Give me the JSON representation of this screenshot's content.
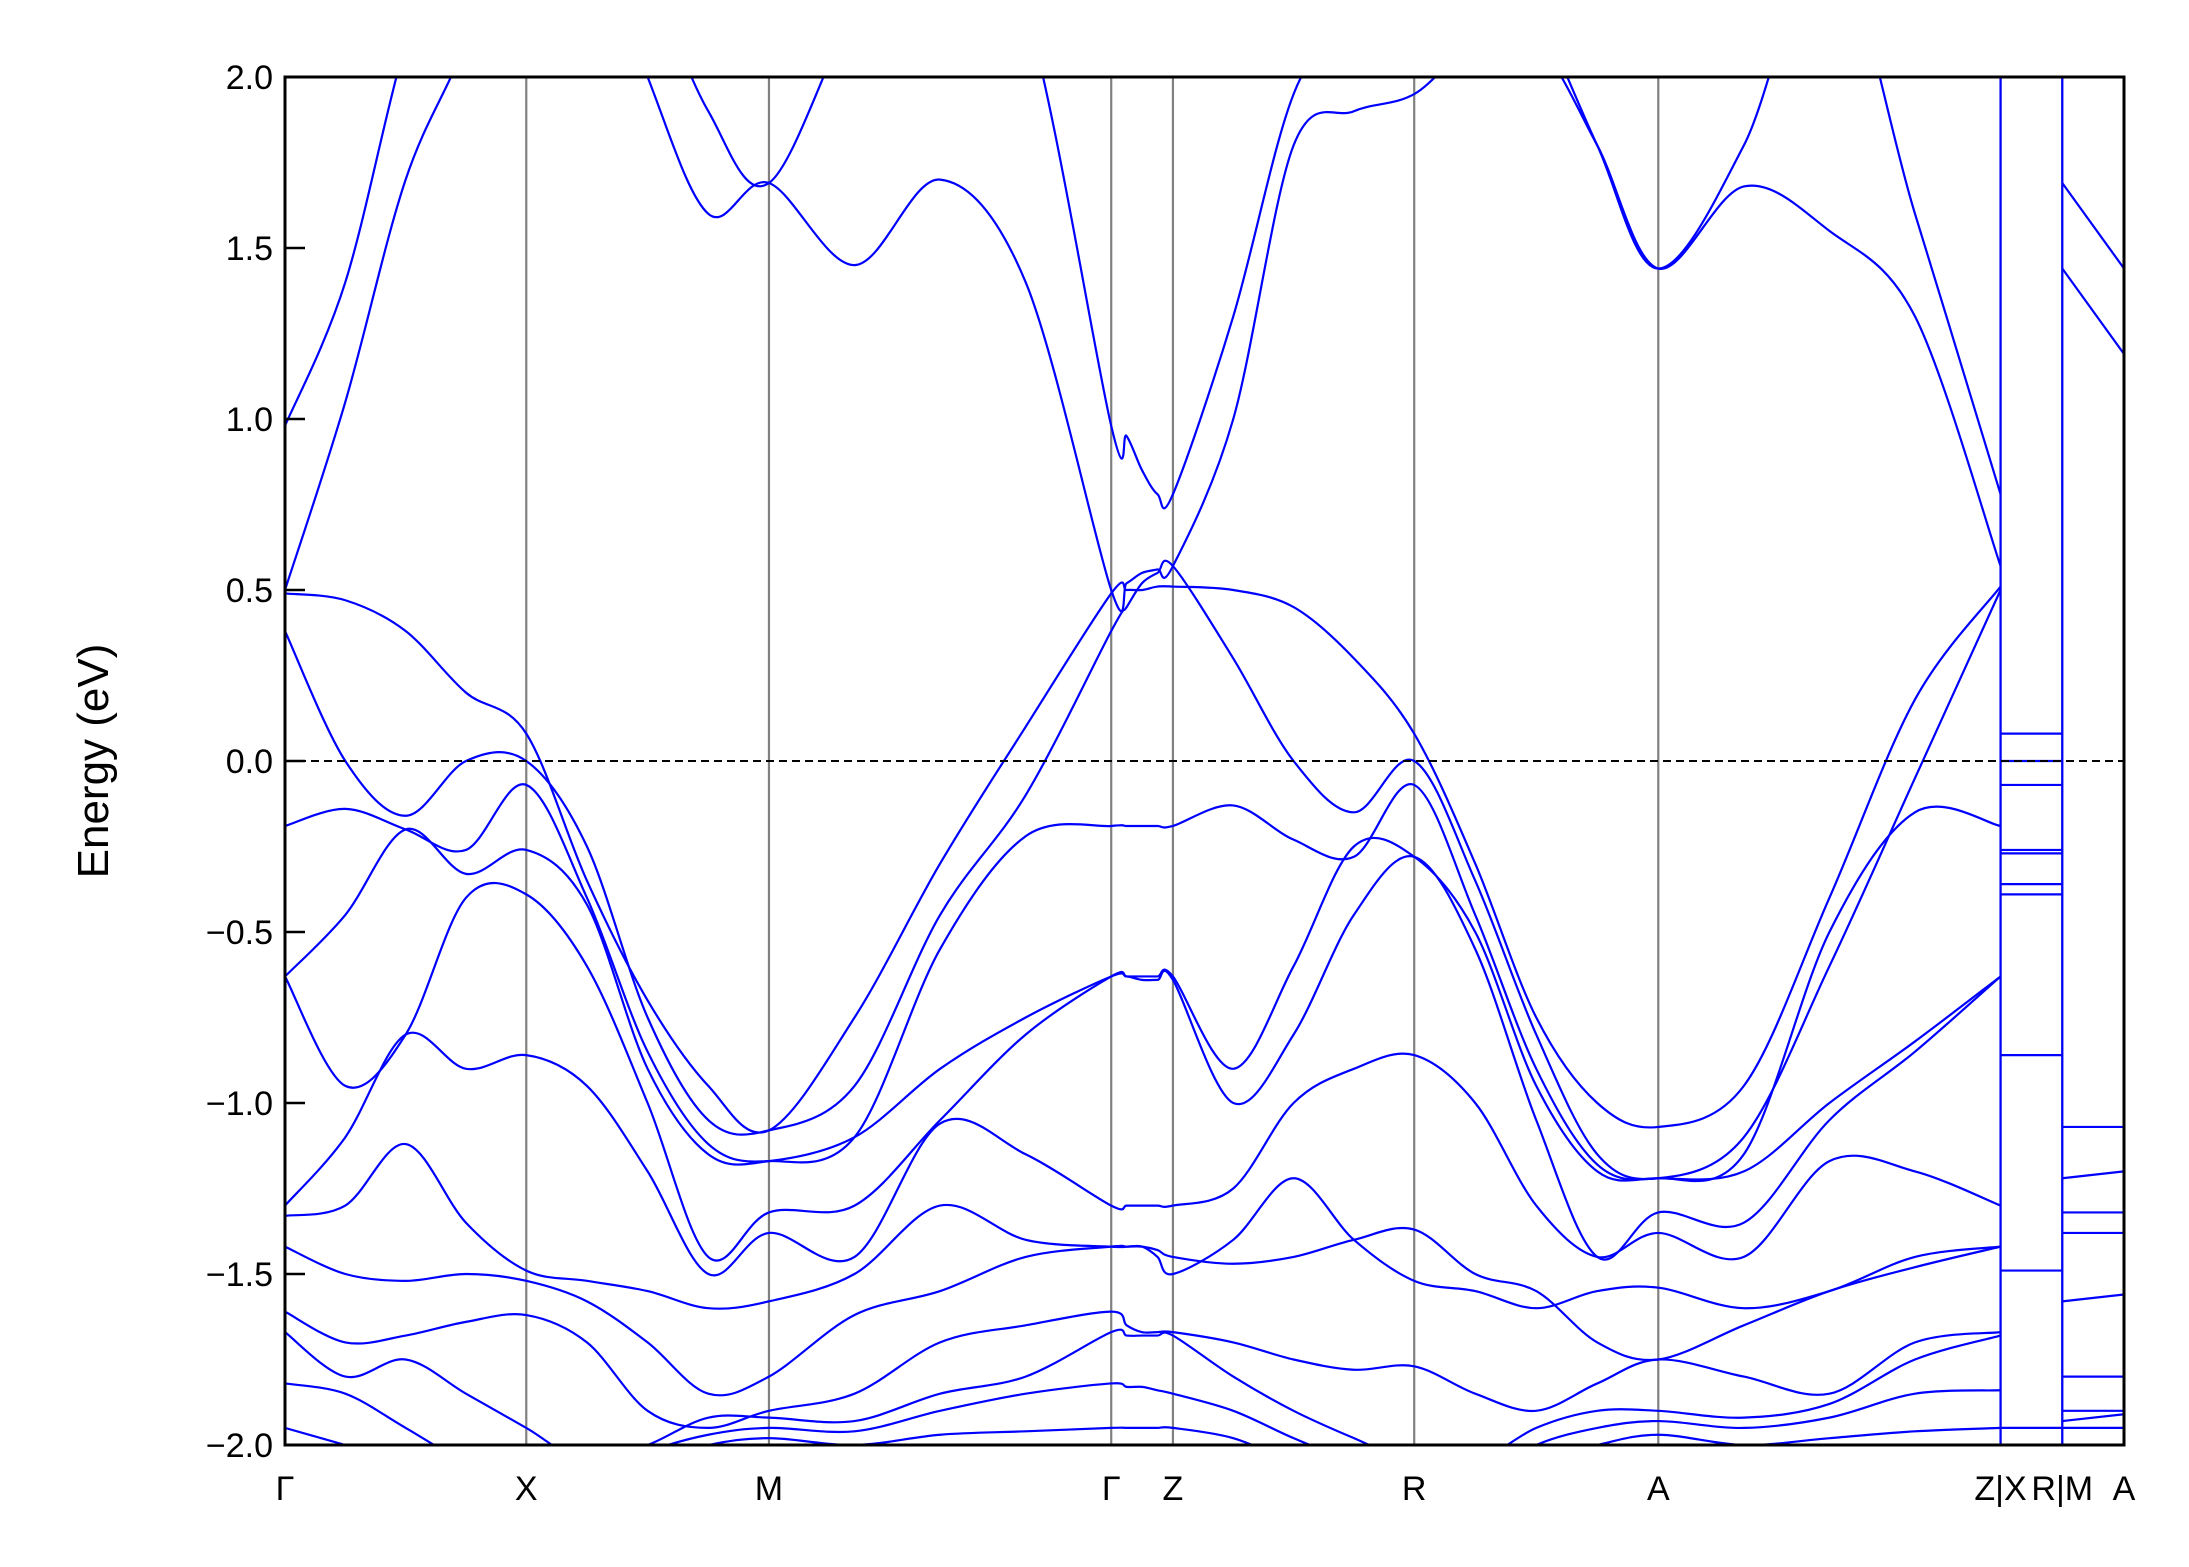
{
  "chart_data": {
    "type": "line",
    "title": "",
    "xlabel": "",
    "ylabel": "Energy (eV)",
    "ylim": [
      -2.0,
      2.0
    ],
    "yticks": [
      "2.0",
      "1.5",
      "1.0",
      "0.5",
      "0.0",
      "−0.5",
      "−1.0",
      "−1.5",
      "−2.0"
    ],
    "ytick_values": [
      2.0,
      1.5,
      1.0,
      0.5,
      0.0,
      -0.5,
      -1.0,
      -1.5,
      -2.0
    ],
    "xticks": [
      "Γ",
      "X",
      "M",
      "Γ",
      "Z",
      "R",
      "A",
      "Z|X",
      "R|M",
      "A"
    ],
    "fermi_level": 0.0,
    "grid": false,
    "colors": {
      "bands": "#0000ff",
      "kpoint_lines": "#808080",
      "fermi_line": "#000000"
    },
    "continuous_path": [
      "Γ",
      "X",
      "M",
      "Γ",
      "Z",
      "R",
      "A",
      "Z"
    ],
    "continuous_bands_note_samples_per_segment": 5,
    "bands": [
      [
        0.49,
        0.47,
        0.38,
        0.2,
        0.08,
        -0.35,
        -0.7,
        -0.95,
        -1.08,
        -0.75,
        -0.3,
        0.1,
        0.49,
        0.5,
        0.5,
        0.51,
        0.51,
        0.5,
        0.45,
        0.3,
        0.08,
        -0.3,
        -0.75,
        -1.0,
        -1.07,
        -0.95,
        -0.4,
        0.18,
        0.51
      ],
      [
        0.38,
        0.0,
        -0.16,
        0.0,
        0.0,
        -0.25,
        -0.75,
        -1.05,
        -1.08,
        -0.95,
        -0.45,
        -0.1,
        0.38,
        0.45,
        0.52,
        0.55,
        0.57,
        0.3,
        0.0,
        -0.15,
        0.0,
        -0.35,
        -0.8,
        -1.15,
        -1.22,
        -1.1,
        -0.6,
        -0.05,
        0.5
      ],
      [
        -0.19,
        -0.14,
        -0.2,
        -0.26,
        -0.07,
        -0.4,
        -0.85,
        -1.12,
        -1.17,
        -1.1,
        -0.55,
        -0.22,
        -0.19,
        -0.19,
        -0.19,
        -0.19,
        -0.19,
        -0.13,
        -0.23,
        -0.28,
        -0.07,
        -0.45,
        -0.9,
        -1.18,
        -1.22,
        -1.15,
        -0.5,
        -0.15,
        -0.19
      ],
      [
        -0.63,
        -0.45,
        -0.2,
        -0.33,
        -0.26,
        -0.42,
        -0.9,
        -1.15,
        -1.17,
        -1.1,
        -0.9,
        -0.75,
        -0.63,
        -0.63,
        -0.63,
        -0.63,
        -0.63,
        -0.9,
        -0.6,
        -0.25,
        -0.28,
        -0.5,
        -0.95,
        -1.2,
        -1.22,
        -1.2,
        -1.0,
        -0.82,
        -0.63
      ],
      [
        -0.63,
        -0.95,
        -0.8,
        -0.4,
        -0.39,
        -0.6,
        -1.0,
        -1.45,
        -1.32,
        -1.3,
        -1.05,
        -0.8,
        -0.63,
        -0.63,
        -0.64,
        -0.64,
        -0.64,
        -1.0,
        -0.8,
        -0.45,
        -0.28,
        -0.55,
        -1.05,
        -1.45,
        -1.32,
        -1.35,
        -1.05,
        -0.85,
        -0.63
      ],
      [
        -1.3,
        -1.1,
        -0.8,
        -0.9,
        -0.86,
        -0.95,
        -1.2,
        -1.5,
        -1.38,
        -1.45,
        -1.06,
        -1.15,
        -1.3,
        -1.3,
        -1.3,
        -1.3,
        -1.3,
        -1.25,
        -1.0,
        -0.9,
        -0.86,
        -1.0,
        -1.3,
        -1.45,
        -1.38,
        -1.45,
        -1.17,
        -1.2,
        -1.3
      ],
      [
        -1.33,
        -1.3,
        -1.12,
        -1.35,
        -1.49,
        -1.52,
        -1.55,
        -1.6,
        -1.58,
        -1.5,
        -1.3,
        -1.4,
        -1.42,
        -1.42,
        -1.42,
        -1.45,
        -1.5,
        -1.4,
        -1.22,
        -1.4,
        -1.52,
        -1.55,
        -1.6,
        -1.55,
        -1.54,
        -1.6,
        -1.55,
        -1.45,
        -1.42
      ],
      [
        -1.42,
        -1.5,
        -1.52,
        -1.5,
        -1.52,
        -1.58,
        -1.7,
        -1.85,
        -1.8,
        -1.62,
        -1.55,
        -1.45,
        -1.42,
        -1.42,
        -1.42,
        -1.43,
        -1.45,
        -1.47,
        -1.45,
        -1.4,
        -1.37,
        -1.5,
        -1.55,
        -1.7,
        -1.75,
        -1.65,
        -1.55,
        -1.48,
        -1.42
      ],
      [
        -1.61,
        -1.7,
        -1.68,
        -1.64,
        -1.62,
        -1.7,
        -1.9,
        -1.95,
        -1.9,
        -1.85,
        -1.7,
        -1.65,
        -1.61,
        -1.65,
        -1.67,
        -1.67,
        -1.67,
        -1.7,
        -1.75,
        -1.78,
        -1.77,
        -1.85,
        -1.9,
        -1.82,
        -1.75,
        -1.8,
        -1.85,
        -1.7,
        -1.67
      ],
      [
        -1.67,
        -1.8,
        -1.75,
        -1.85,
        -1.95,
        -2.05,
        -2.0,
        -1.92,
        -1.92,
        -1.93,
        -1.85,
        -1.8,
        -1.67,
        -1.68,
        -1.68,
        -1.68,
        -1.68,
        -1.8,
        -1.9,
        -1.98,
        -2.05,
        -2.05,
        -1.95,
        -1.9,
        -1.9,
        -1.92,
        -1.88,
        -1.75,
        -1.68
      ],
      [
        -1.82,
        -1.85,
        -1.95,
        -2.05,
        -2.1,
        -2.1,
        -2.02,
        -1.97,
        -1.95,
        -1.96,
        -1.9,
        -1.85,
        -1.82,
        -1.83,
        -1.83,
        -1.84,
        -1.85,
        -1.9,
        -1.98,
        -2.05,
        -2.1,
        -2.1,
        -2.0,
        -1.95,
        -1.93,
        -1.95,
        -1.92,
        -1.85,
        -1.84
      ],
      [
        -1.95,
        -2.0,
        -2.05,
        -2.1,
        -2.1,
        -2.1,
        -2.05,
        -2.0,
        -1.98,
        -2.0,
        -1.97,
        -1.96,
        -1.95,
        -1.95,
        -1.95,
        -1.95,
        -1.95,
        -1.98,
        -2.05,
        -2.1,
        -2.1,
        -2.1,
        -2.05,
        -2.0,
        -1.97,
        -2.0,
        -1.98,
        -1.96,
        -1.95
      ],
      [
        0.5,
        1.05,
        1.7,
        2.1,
        2.6,
        2.5,
        2.0,
        1.6,
        1.69,
        1.45,
        1.7,
        1.4,
        0.5,
        0.52,
        0.55,
        0.56,
        0.57,
        1.0,
        1.8,
        1.9,
        1.95,
        2.1,
        2.1,
        1.8,
        1.44,
        1.68,
        1.55,
        1.3,
        0.57
      ],
      [
        0.98,
        1.4,
        2.1,
        2.6,
        2.8,
        2.6,
        2.3,
        1.9,
        1.69,
        2.2,
        2.6,
        2.2,
        0.98,
        0.95,
        0.85,
        0.78,
        0.78,
        1.3,
        1.95,
        2.2,
        2.5,
        2.5,
        2.2,
        1.8,
        1.44,
        1.8,
        2.4,
        1.6,
        0.78
      ]
    ],
    "segment_X_R": [
      0.08,
      0.0,
      -0.07,
      -0.26,
      -0.27,
      -0.39,
      -0.36,
      -0.86,
      -1.49,
      -1.95
    ],
    "segment_M_A": [
      1.69,
      1.44,
      -1.07,
      -1.22,
      -1.32,
      -1.38,
      -1.58,
      -1.8,
      -1.9,
      -1.93,
      -1.95
    ]
  }
}
